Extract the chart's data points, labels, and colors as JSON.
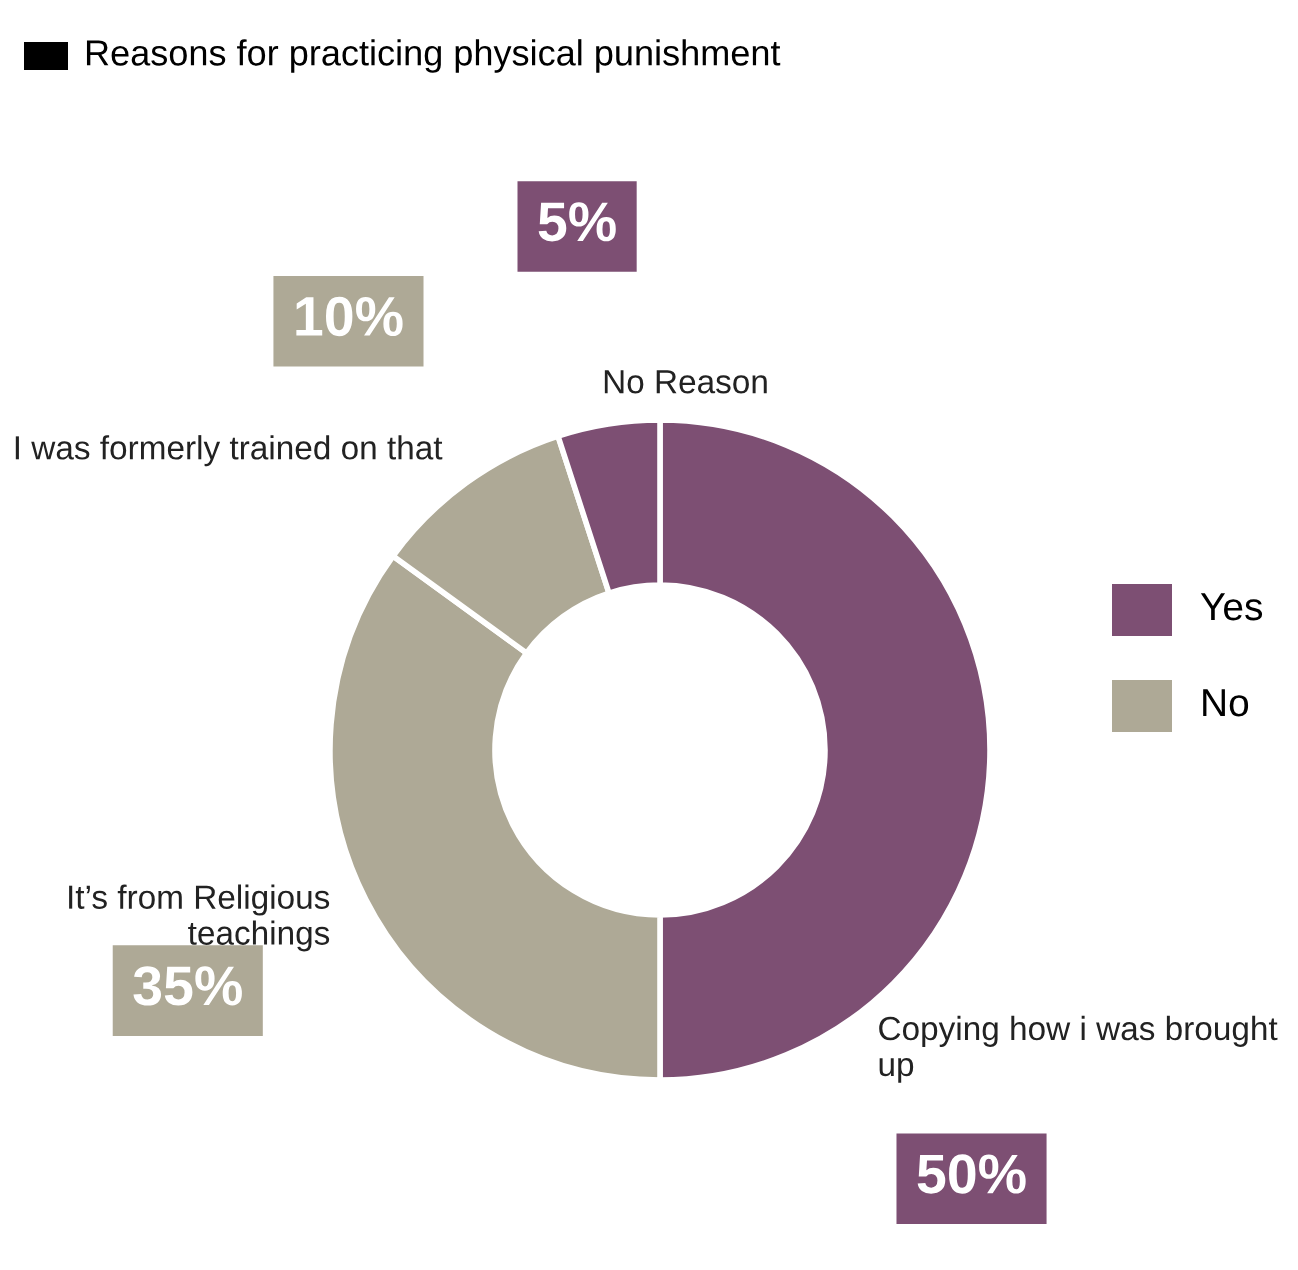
{
  "chart_data": {
    "type": "donut",
    "title": "Reasons for practicing physical punishment",
    "categories": [
      "Copying how i was brought up",
      "It’s from Religious teachings",
      "I was formerly trained on that",
      "No Reason"
    ],
    "values": [
      50,
      35,
      10,
      5
    ],
    "value_labels": [
      "50%",
      "35%",
      "10%",
      "5%"
    ],
    "colors": [
      "#7d4f73",
      "#aea996",
      "#aea996",
      "#7d4f73"
    ],
    "annotations": [
      "Yes",
      "No"
    ]
  }
}
